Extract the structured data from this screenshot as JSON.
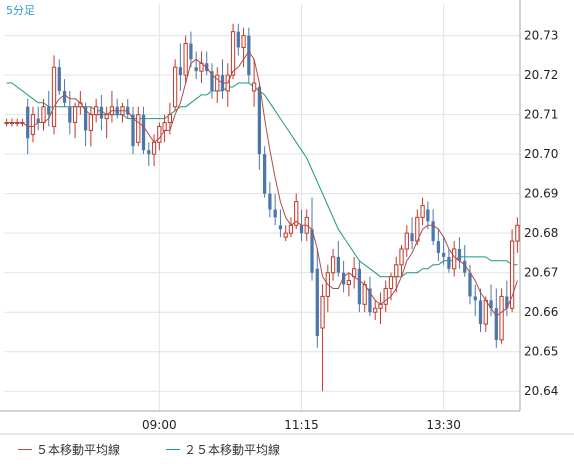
{
  "timeframe_label": "5分足",
  "colors": {
    "up": "#c0392b",
    "down": "#4a78ad",
    "ma5": "#b24a4a",
    "ma25": "#1a9a79",
    "grid": "#e3e3e3",
    "frame": "#aaaaaa",
    "timeframe": "#2a9ad6"
  },
  "chart_data": {
    "type": "candlestick",
    "ylim": [
      20.635,
      20.738
    ],
    "y_ticks": [
      "20.73",
      "20.72",
      "20.71",
      "20.70",
      "20.69",
      "20.68",
      "20.67",
      "20.66",
      "20.65",
      "20.64"
    ],
    "x_ticks": [
      {
        "label": "09:00",
        "index": 29
      },
      {
        "label": "11:15",
        "index": 56
      },
      {
        "label": "13:30",
        "index": 83
      }
    ],
    "series": [
      {
        "name": "５本移動平均線"
      },
      {
        "name": "２５本移動平均線"
      }
    ],
    "candles": [
      [
        20.708,
        20.709,
        20.707,
        20.708
      ],
      [
        20.708,
        20.709,
        20.707,
        20.708
      ],
      [
        20.708,
        20.709,
        20.707,
        20.708
      ],
      [
        20.708,
        20.709,
        20.707,
        20.708
      ],
      [
        20.712,
        20.714,
        20.7,
        20.704
      ],
      [
        20.705,
        20.712,
        20.703,
        20.71
      ],
      [
        20.709,
        20.712,
        20.706,
        20.708
      ],
      [
        20.708,
        20.714,
        20.706,
        20.712
      ],
      [
        20.712,
        20.716,
        20.707,
        20.71
      ],
      [
        20.707,
        20.725,
        20.705,
        20.722
      ],
      [
        20.722,
        20.724,
        20.715,
        20.716
      ],
      [
        20.716,
        20.719,
        20.712,
        20.713
      ],
      [
        20.712,
        20.716,
        20.705,
        20.708
      ],
      [
        20.708,
        20.713,
        20.704,
        20.712
      ],
      [
        20.712,
        20.716,
        20.71,
        20.713
      ],
      [
        20.712,
        20.713,
        20.702,
        20.706
      ],
      [
        20.706,
        20.712,
        20.702,
        20.71
      ],
      [
        20.71,
        20.714,
        20.708,
        20.712
      ],
      [
        20.712,
        20.715,
        20.706,
        20.709
      ],
      [
        20.709,
        20.712,
        20.704,
        20.71
      ],
      [
        20.71,
        20.716,
        20.708,
        20.712
      ],
      [
        20.712,
        20.714,
        20.709,
        20.71
      ],
      [
        20.71,
        20.713,
        20.708,
        20.712
      ],
      [
        20.712,
        20.714,
        20.709,
        20.71
      ],
      [
        20.71,
        20.712,
        20.7,
        20.702
      ],
      [
        20.703,
        20.712,
        20.702,
        20.71
      ],
      [
        20.71,
        20.712,
        20.7,
        20.701
      ],
      [
        20.701,
        20.703,
        20.697,
        20.7
      ],
      [
        20.7,
        20.705,
        20.697,
        20.703
      ],
      [
        20.703,
        20.708,
        20.701,
        20.707
      ],
      [
        20.706,
        20.71,
        20.703,
        20.708
      ],
      [
        20.708,
        20.713,
        20.705,
        20.71
      ],
      [
        20.712,
        20.724,
        20.711,
        20.722
      ],
      [
        20.722,
        20.728,
        20.716,
        20.72
      ],
      [
        20.72,
        20.73,
        20.718,
        20.728
      ],
      [
        20.728,
        20.731,
        20.722,
        20.724
      ],
      [
        20.722,
        20.726,
        20.719,
        20.721
      ],
      [
        20.721,
        20.726,
        20.718,
        20.723
      ],
      [
        20.723,
        20.726,
        20.72,
        20.721
      ],
      [
        20.721,
        20.723,
        20.714,
        20.716
      ],
      [
        20.716,
        20.722,
        20.713,
        20.72
      ],
      [
        20.72,
        20.724,
        20.714,
        20.716
      ],
      [
        20.716,
        20.723,
        20.712,
        20.72
      ],
      [
        20.72,
        20.733,
        20.719,
        20.731
      ],
      [
        20.731,
        20.733,
        20.725,
        20.727
      ],
      [
        20.727,
        20.732,
        20.722,
        20.73
      ],
      [
        20.73,
        20.732,
        20.718,
        20.72
      ],
      [
        20.716,
        20.724,
        20.712,
        20.718
      ],
      [
        20.717,
        20.718,
        20.696,
        20.7
      ],
      [
        20.7,
        20.702,
        20.689,
        20.69
      ],
      [
        20.69,
        20.693,
        20.684,
        20.686
      ],
      [
        20.686,
        20.69,
        20.682,
        20.684
      ],
      [
        20.682,
        20.686,
        20.679,
        20.681
      ],
      [
        20.679,
        20.682,
        20.678,
        20.68
      ],
      [
        20.68,
        20.684,
        20.679,
        20.682
      ],
      [
        20.682,
        20.69,
        20.681,
        20.688
      ],
      [
        20.682,
        20.686,
        20.678,
        20.68
      ],
      [
        20.68,
        20.686,
        20.678,
        20.684
      ],
      [
        20.681,
        20.689,
        20.668,
        20.67
      ],
      [
        20.671,
        20.676,
        20.651,
        20.654
      ],
      [
        20.656,
        20.667,
        20.64,
        20.664
      ],
      [
        20.664,
        20.672,
        20.66,
        20.67
      ],
      [
        20.67,
        20.676,
        20.668,
        20.674
      ],
      [
        20.674,
        20.678,
        20.669,
        20.67
      ],
      [
        20.67,
        20.673,
        20.665,
        20.667
      ],
      [
        20.667,
        20.67,
        20.664,
        20.668
      ],
      [
        20.669,
        20.674,
        20.666,
        20.671
      ],
      [
        20.671,
        20.673,
        20.66,
        20.662
      ],
      [
        20.662,
        20.668,
        20.66,
        20.667
      ],
      [
        20.666,
        20.669,
        20.659,
        20.66
      ],
      [
        20.66,
        20.663,
        20.658,
        20.661
      ],
      [
        20.661,
        20.665,
        20.657,
        20.662
      ],
      [
        20.662,
        20.668,
        20.66,
        20.666
      ],
      [
        20.666,
        20.67,
        20.663,
        20.669
      ],
      [
        20.669,
        20.674,
        20.665,
        20.672
      ],
      [
        20.672,
        20.677,
        20.669,
        20.676
      ],
      [
        20.676,
        20.682,
        20.674,
        20.68
      ],
      [
        20.68,
        20.684,
        20.676,
        20.678
      ],
      [
        20.678,
        20.686,
        20.677,
        20.684
      ],
      [
        20.684,
        20.689,
        20.682,
        20.687
      ],
      [
        20.686,
        20.688,
        20.681,
        20.683
      ],
      [
        20.683,
        20.686,
        20.677,
        20.678
      ],
      [
        20.678,
        20.681,
        20.673,
        20.675
      ],
      [
        20.675,
        20.679,
        20.672,
        20.674
      ],
      [
        20.674,
        20.676,
        20.67,
        20.671
      ],
      [
        20.671,
        20.678,
        20.669,
        20.676
      ],
      [
        20.676,
        20.679,
        20.671,
        20.673
      ],
      [
        20.673,
        20.677,
        20.669,
        20.67
      ],
      [
        20.67,
        20.672,
        20.662,
        20.664
      ],
      [
        20.664,
        20.667,
        20.659,
        20.663
      ],
      [
        20.663,
        20.666,
        20.655,
        20.657
      ],
      [
        20.657,
        20.664,
        20.655,
        20.663
      ],
      [
        20.663,
        20.667,
        20.659,
        20.661
      ],
      [
        20.661,
        20.666,
        20.651,
        20.653
      ],
      [
        20.653,
        20.666,
        20.652,
        20.664
      ],
      [
        20.664,
        20.668,
        20.659,
        20.661
      ],
      [
        20.661,
        20.681,
        20.66,
        20.678
      ],
      [
        20.678,
        20.684,
        20.675,
        20.682
      ]
    ],
    "ma5": [
      20.708,
      20.708,
      20.708,
      20.708,
      20.707,
      20.707,
      20.708,
      20.708,
      20.709,
      20.712,
      20.714,
      20.715,
      20.714,
      20.714,
      20.713,
      20.711,
      20.71,
      20.71,
      20.71,
      20.71,
      20.711,
      20.711,
      20.711,
      20.711,
      20.709,
      20.708,
      20.707,
      20.705,
      20.703,
      20.704,
      20.706,
      20.706,
      20.71,
      20.713,
      20.718,
      20.723,
      20.724,
      20.723,
      20.722,
      20.72,
      20.719,
      20.718,
      20.718,
      20.721,
      20.722,
      20.724,
      20.726,
      20.724,
      20.718,
      20.709,
      20.701,
      20.694,
      20.688,
      20.684,
      20.682,
      20.683,
      20.682,
      20.682,
      20.681,
      20.676,
      20.669,
      20.667,
      20.666,
      20.666,
      20.669,
      20.67,
      20.669,
      20.668,
      20.667,
      20.665,
      20.663,
      20.662,
      20.663,
      20.664,
      20.666,
      20.669,
      20.673,
      20.675,
      20.678,
      20.681,
      20.682,
      20.682,
      20.681,
      20.679,
      20.676,
      20.674,
      20.673,
      20.672,
      20.67,
      20.668,
      20.665,
      20.663,
      20.661,
      20.659,
      20.66,
      20.661,
      20.664,
      20.668
    ],
    "ma25": [
      20.718,
      20.718,
      20.717,
      20.716,
      20.715,
      20.714,
      20.713,
      20.713,
      20.712,
      20.712,
      20.712,
      20.712,
      20.712,
      20.712,
      20.712,
      20.712,
      20.712,
      20.711,
      20.711,
      20.71,
      20.71,
      20.71,
      20.71,
      20.709,
      20.709,
      20.709,
      20.709,
      20.709,
      20.709,
      20.709,
      20.709,
      20.71,
      20.711,
      20.712,
      20.712,
      20.713,
      20.714,
      20.715,
      20.715,
      20.716,
      20.716,
      20.716,
      20.717,
      20.717,
      20.718,
      20.718,
      20.718,
      20.717,
      20.716,
      20.715,
      20.713,
      20.711,
      20.709,
      20.707,
      20.705,
      20.703,
      20.701,
      20.699,
      20.696,
      20.693,
      20.69,
      20.687,
      20.684,
      20.681,
      20.679,
      20.677,
      20.675,
      20.673,
      20.672,
      20.671,
      20.67,
      20.669,
      20.669,
      20.669,
      20.669,
      20.669,
      20.67,
      20.67,
      20.67,
      20.671,
      20.671,
      20.672,
      20.672,
      20.673,
      20.673,
      20.673,
      20.674,
      20.674,
      20.674,
      20.674,
      20.674,
      20.674,
      20.673,
      20.673,
      20.673,
      20.673,
      20.672,
      20.672
    ]
  }
}
